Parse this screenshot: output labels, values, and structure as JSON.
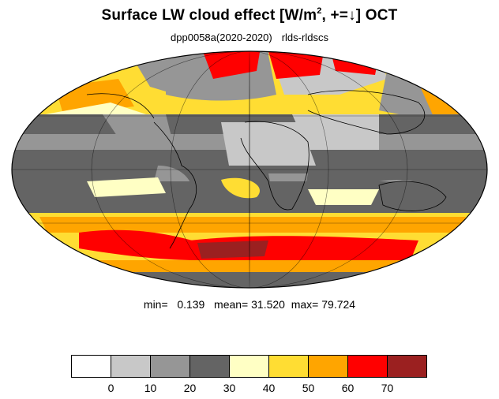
{
  "title": {
    "main_prefix": "Surface LW cloud effect [W/m",
    "superscript": "2",
    "main_suffix": ", +=↓]  OCT"
  },
  "subtitle": {
    "experiment": "dpp0058a(2020-2020)",
    "variable": "rlds-rldscs"
  },
  "stats": {
    "min_label": "min=",
    "min_value": "0.139",
    "mean_label": "mean=",
    "mean_value": "31.520",
    "max_label": "max=",
    "max_value": "79.724"
  },
  "colorbar": {
    "tick_labels": [
      "0",
      "10",
      "20",
      "30",
      "40",
      "50",
      "60",
      "70"
    ],
    "colors": [
      "#ffffff",
      "#c8c8c8",
      "#969696",
      "#646464",
      "#ffffc4",
      "#ffdd33",
      "#ffa500",
      "#ff0000",
      "#9b2020"
    ]
  },
  "map": {
    "projection": "mollweide",
    "colors": {
      "band_0_10": "#c8c8c8",
      "band_10_20": "#969696",
      "band_20_30": "#646464",
      "band_30_40": "#ffffc4",
      "band_40_50": "#ffdd33",
      "band_50_60": "#ffa500",
      "band_60_70": "#ff0000",
      "band_70_80": "#9b2020"
    }
  }
}
